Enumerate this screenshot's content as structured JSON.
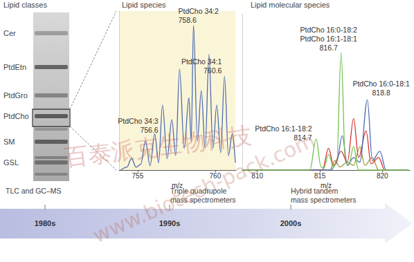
{
  "tlc": {
    "title": "Lipid classes",
    "labels": [
      "Cer",
      "PtdEtn",
      "PtdGro",
      "PtdCho",
      "SM",
      "GSL"
    ],
    "highlight": "PtdCho"
  },
  "chart_data": [
    {
      "type": "line",
      "title": "Lipid species",
      "x_label": "m/z",
      "xlim": [
        753.8,
        761.3
      ],
      "xticks": [
        755,
        760
      ],
      "ylim": [
        0,
        110
      ],
      "tick_labels": "x",
      "grid": false,
      "series": [
        {
          "color": "#4a6cb3",
          "x": [
            753.9,
            754.3,
            754.6,
            754.9,
            755.2,
            755.5,
            755.8,
            756.1,
            756.35,
            756.6,
            756.9,
            757.2,
            757.45,
            757.7,
            758.0,
            758.3,
            758.45,
            758.6,
            758.85,
            759.1,
            759.35,
            759.6,
            759.85,
            760.1,
            760.35,
            760.6,
            760.85,
            761.1,
            761.3
          ],
          "values": [
            0,
            2,
            8,
            2,
            4,
            20,
            3,
            25,
            5,
            45,
            8,
            35,
            10,
            70,
            15,
            50,
            20,
            100,
            20,
            55,
            15,
            80,
            15,
            45,
            12,
            65,
            10,
            25,
            5
          ]
        }
      ],
      "annotations": [
        {
          "text": [
            "PtdCho 34:2",
            "758.6"
          ],
          "x": 758.6
        },
        {
          "text": [
            "PtdCho 34:1",
            "760.6"
          ],
          "x": 760.6
        },
        {
          "text": [
            "PtdCho 34:3",
            "756.6"
          ],
          "x": 756.6
        }
      ]
    },
    {
      "type": "line",
      "title": "Lipid molecular species",
      "x_label": "m/z",
      "xlim": [
        808.8,
        822.2
      ],
      "xticks": [
        810,
        815,
        820
      ],
      "ylim": [
        0,
        100
      ],
      "tick_labels": "x",
      "grid": false,
      "series": [
        {
          "color": "#9c9a3c",
          "x": [
            808.9,
            815.8,
            816.2,
            816.6,
            817.2,
            817.7,
            818.2,
            818.6,
            819.2,
            819.7,
            822.1
          ],
          "values": [
            0,
            0,
            6,
            2,
            5,
            3,
            15,
            3,
            8,
            0,
            0
          ]
        },
        {
          "color": "#d9302c",
          "x": [
            808.9,
            815.2,
            815.7,
            816.1,
            816.7,
            817.2,
            817.7,
            818.1,
            818.7,
            819.1,
            819.7,
            820.2,
            822.1
          ],
          "values": [
            0,
            0,
            14,
            3,
            12,
            5,
            33,
            8,
            25,
            4,
            8,
            0,
            0
          ]
        },
        {
          "color": "#4a6cb3",
          "x": [
            808.9,
            815.9,
            816.3,
            816.8,
            817.2,
            817.7,
            818.2,
            818.8,
            819.2,
            819.8,
            820.3,
            822.1
          ],
          "values": [
            0,
            0,
            4,
            22,
            3,
            8,
            5,
            45,
            6,
            12,
            0,
            0
          ]
        },
        {
          "color": "#72c24c",
          "x": [
            808.9,
            814.2,
            814.7,
            815.1,
            815.3,
            815.7,
            816.1,
            816.35,
            816.7,
            817.05,
            817.3,
            817.7,
            818.1,
            822.1
          ],
          "values": [
            0,
            0,
            20,
            2,
            1,
            10,
            2,
            5,
            75,
            5,
            3,
            15,
            0,
            0
          ]
        }
      ],
      "annotations": [
        {
          "text": [
            "PtdCho 16:0-18:2",
            "PtdCho 16:1-18:1",
            "816.7"
          ],
          "x": 816.7
        },
        {
          "text": [
            "PtdCho 16:0-18:1",
            "818.8"
          ],
          "x": 818.8
        },
        {
          "text": [
            "PtdCho 16:1-18:2",
            "814.7"
          ],
          "x": 814.7
        }
      ]
    }
  ],
  "timeline": [
    {
      "period": "1980s",
      "methods": [
        "TLC and GC–MS"
      ]
    },
    {
      "period": "1990s",
      "methods": [
        "Triple quadrupole",
        "mass spectrometers"
      ]
    },
    {
      "period": "2000s",
      "methods": [
        "Hybrid tandem",
        "mass spectrometers"
      ]
    }
  ],
  "watermark": [
    "百泰派克生物科技",
    "www.biotech-pack.com"
  ]
}
